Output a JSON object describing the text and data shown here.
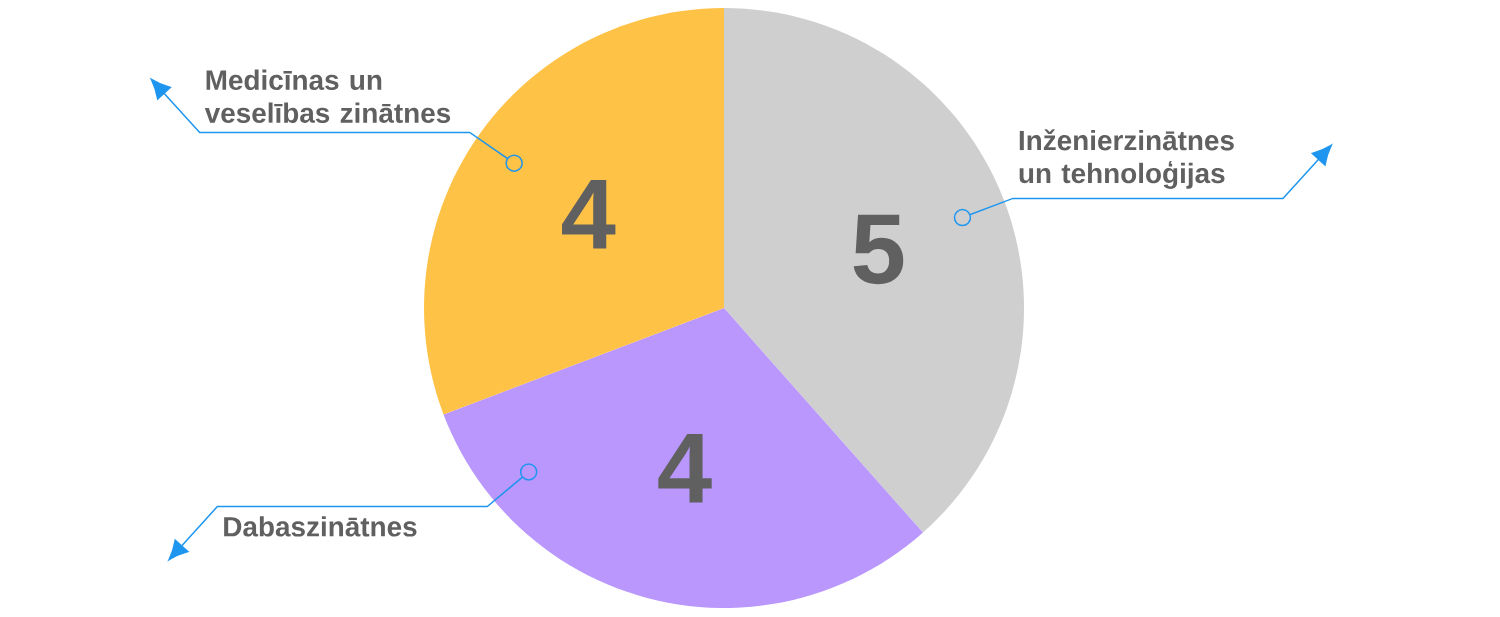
{
  "chart_data": {
    "type": "pie",
    "categories": [
      "Inženierzinātnes un tehnoloģijas",
      "Dabaszinātnes",
      "Medicīnas un veselības zinātnes"
    ],
    "values": [
      5,
      4,
      4
    ],
    "colors": [
      "#cfcfcf",
      "#b997fd",
      "#fec247"
    ],
    "data_labels": true
  }
}
